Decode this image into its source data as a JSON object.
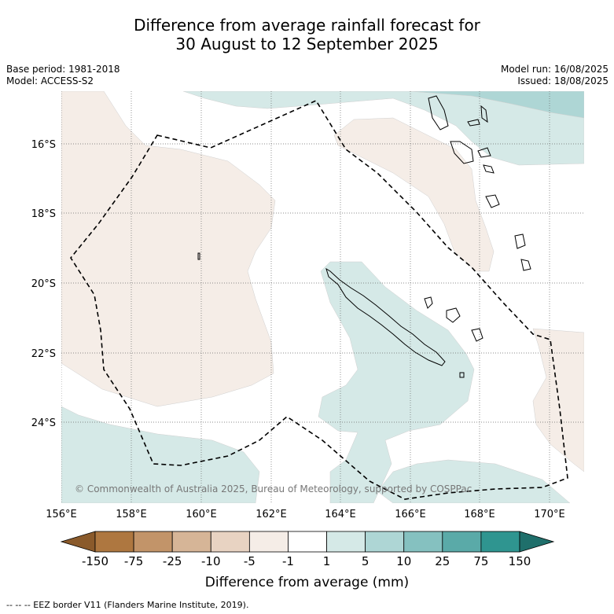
{
  "title": {
    "line1": "Difference from average rainfall forecast for",
    "line2": "30 August to 12 September 2025"
  },
  "meta": {
    "base_period": "Base period: 1981-2018",
    "model": "Model: ACCESS-S2",
    "model_run": "Model run: 16/08/2025",
    "issued": "Issued: 18/08/2025"
  },
  "map": {
    "region": "Vanuatu / New Caledonia",
    "lon_labels": [
      "156°E",
      "158°E",
      "160°E",
      "162°E",
      "164°E",
      "166°E",
      "168°E",
      "170°E"
    ],
    "lat_labels": [
      "16°S",
      "18°S",
      "20°S",
      "22°S",
      "24°S"
    ],
    "copyright": "© Commonwealth of Australia 2025, Bureau of Meteorology, supported by COSPPac",
    "colors": {
      "dry_light": "#f5ede7",
      "wet_light": "#d5e9e7",
      "wet_mid": "#aed6d5",
      "border": "#000000"
    }
  },
  "colorbar": {
    "labels": [
      "-150",
      "-75",
      "-25",
      "-10",
      "-5",
      "-1",
      "1",
      "5",
      "10",
      "25",
      "75",
      "150"
    ],
    "colors": [
      "#8a5a2b",
      "#ae7740",
      "#c29469",
      "#d6b597",
      "#e8d3c2",
      "#f5ede7",
      "#ffffff",
      "#d5e9e7",
      "#aed6d5",
      "#85c1c0",
      "#5aaaa8",
      "#2f9590",
      "#1f6f6b"
    ],
    "title": "Difference from average (mm)"
  },
  "legend": {
    "eez": "--  --  -- EEZ border V11 (Flanders Marine Institute, 2019)."
  }
}
